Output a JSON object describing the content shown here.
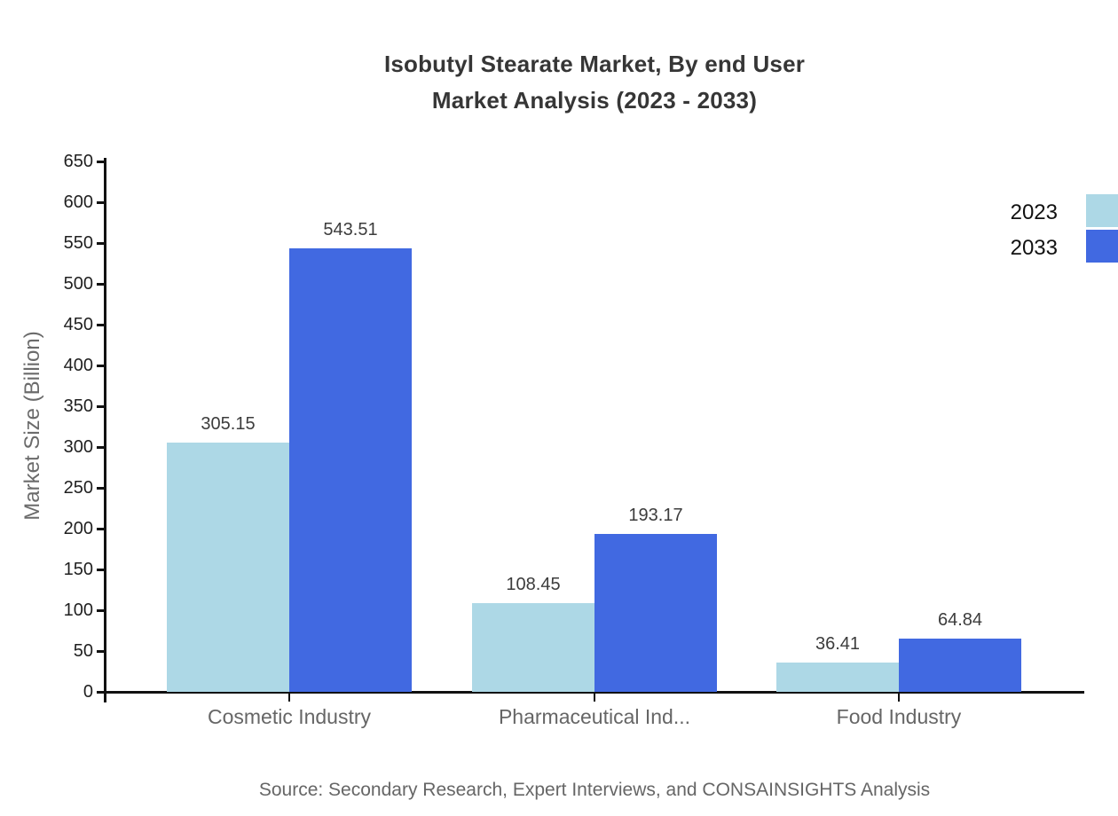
{
  "title": {
    "line1": "Isobutyl Stearate Market, By end User",
    "line2": "Market Analysis (2023 - 2033)"
  },
  "source": "Source: Secondary Research, Expert Interviews, and CONSAINSIGHTS Analysis",
  "chart_data": {
    "type": "bar",
    "title": "Isobutyl Stearate Market, By end User Market Analysis (2023 - 2033)",
    "categories": [
      "Cosmetic Industry",
      "Pharmaceutical Ind...",
      "Food Industry"
    ],
    "series": [
      {
        "name": "2023",
        "color": "#ADD8E6",
        "values": [
          305.15,
          108.45,
          36.41
        ]
      },
      {
        "name": "2033",
        "color": "#4169E1",
        "values": [
          543.51,
          193.17,
          64.84
        ]
      }
    ],
    "xlabel": "",
    "ylabel": "Market Size (Billion)",
    "ylim": [
      0,
      650
    ],
    "ytick_step": 50,
    "grid": false,
    "legend_position": "top-right",
    "value_labels": true
  }
}
